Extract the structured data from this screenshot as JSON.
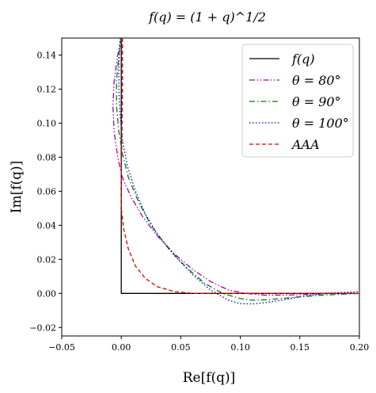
{
  "chart_data": {
    "type": "line",
    "title": "f(q) = (1 + q)^1/2",
    "xlabel": "Re[f(q)]",
    "ylabel": "Im[f(q)]",
    "xlim": [
      -0.05,
      0.2
    ],
    "ylim": [
      -0.025,
      0.15
    ],
    "xticks": [
      -0.05,
      0.0,
      0.05,
      0.1,
      0.15,
      0.2
    ],
    "xtick_labels": [
      "−0.05",
      "0.00",
      "0.05",
      "0.10",
      "0.15",
      "0.20"
    ],
    "yticks": [
      -0.02,
      0.0,
      0.02,
      0.04,
      0.06,
      0.08,
      0.1,
      0.12,
      0.14
    ],
    "ytick_labels": [
      "−0.02",
      "0.00",
      "0.02",
      "0.04",
      "0.06",
      "0.08",
      "0.10",
      "0.12",
      "0.14"
    ],
    "grid": false,
    "legend_position": "top-right",
    "series": [
      {
        "name": "f(q)",
        "color": "#000000",
        "dash": "solid",
        "x": [
          0.2,
          0.15,
          0.1,
          0.05,
          0.02,
          0.0,
          0.0,
          0.0,
          0.0
        ],
        "y": [
          0.0,
          0.0,
          0.0,
          0.0,
          0.0,
          0.0,
          0.05,
          0.1,
          0.15
        ]
      },
      {
        "name": "θ = 80°",
        "color": "#aa00aa",
        "dash": "dash-dot-dot",
        "x": [
          0.0,
          -0.003,
          -0.006,
          -0.007,
          -0.006,
          -0.003,
          0.001,
          0.008,
          0.018,
          0.03,
          0.045,
          0.06,
          0.075,
          0.09,
          0.105,
          0.12,
          0.14,
          0.16,
          0.18,
          0.2
        ],
        "y": [
          0.15,
          0.14,
          0.125,
          0.11,
          0.095,
          0.08,
          0.068,
          0.057,
          0.045,
          0.034,
          0.023,
          0.014,
          0.007,
          0.002,
          0.0,
          -0.001,
          -0.001,
          -0.0005,
          0.0,
          0.0
        ]
      },
      {
        "name": "θ = 90°",
        "color": "#008000",
        "dash": "dash-dot",
        "x": [
          0.0,
          -0.002,
          -0.004,
          -0.004,
          -0.002,
          0.001,
          0.006,
          0.015,
          0.025,
          0.04,
          0.055,
          0.07,
          0.085,
          0.1,
          0.11,
          0.12,
          0.135,
          0.15,
          0.17,
          0.2
        ],
        "y": [
          0.15,
          0.14,
          0.125,
          0.11,
          0.095,
          0.082,
          0.068,
          0.053,
          0.04,
          0.026,
          0.015,
          0.006,
          0.0,
          -0.003,
          -0.004,
          -0.0038,
          -0.003,
          -0.002,
          -0.001,
          0.0
        ]
      },
      {
        "name": "θ = 100°",
        "color": "#0000cc",
        "dash": "dotted",
        "x": [
          -0.001,
          -0.002,
          -0.002,
          -0.001,
          0.001,
          0.005,
          0.012,
          0.02,
          0.03,
          0.045,
          0.06,
          0.075,
          0.09,
          0.1,
          0.11,
          0.12,
          0.135,
          0.15,
          0.17,
          0.2
        ],
        "y": [
          0.15,
          0.135,
          0.12,
          0.105,
          0.09,
          0.075,
          0.06,
          0.047,
          0.035,
          0.022,
          0.011,
          0.002,
          -0.004,
          -0.006,
          -0.0062,
          -0.0055,
          -0.004,
          -0.002,
          0.0,
          0.001
        ]
      },
      {
        "name": "AAA",
        "color": "#dd0000",
        "dash": "dashed",
        "x": [
          0.001,
          0.001,
          0.0005,
          0.0,
          0.0,
          0.002,
          0.006,
          0.012,
          0.02,
          0.03,
          0.045,
          0.06,
          0.08,
          0.1,
          0.13,
          0.16,
          0.2
        ],
        "y": [
          0.15,
          0.12,
          0.09,
          0.07,
          0.05,
          0.038,
          0.026,
          0.016,
          0.009,
          0.004,
          0.001,
          0.0,
          0.0,
          0.0,
          0.0,
          0.0,
          0.0
        ]
      }
    ]
  }
}
